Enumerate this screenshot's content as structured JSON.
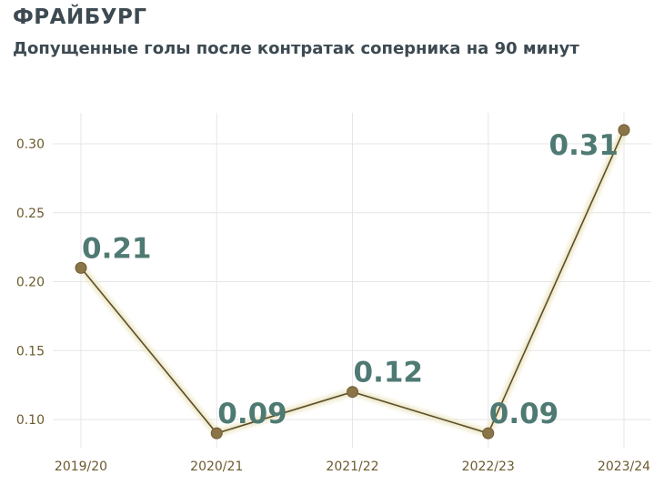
{
  "header": {
    "title": "ФРАЙБУРГ",
    "subtitle": "Допущенные голы после контратак соперника на 90 минут"
  },
  "chart_data": {
    "type": "line",
    "title": "ФРАЙБУРГ",
    "subtitle": "Допущенные голы после контратак соперника на 90 минут",
    "xlabel": "",
    "ylabel": "",
    "categories": [
      "2019/20",
      "2020/21",
      "2021/22",
      "2022/23",
      "2023/24"
    ],
    "values": [
      0.21,
      0.09,
      0.12,
      0.09,
      0.31
    ],
    "data_labels": [
      "0.21",
      "0.09",
      "0.12",
      "0.09",
      "0.31"
    ],
    "yticks": [
      0.1,
      0.15,
      0.2,
      0.25,
      0.3
    ],
    "ytick_labels": [
      "0.10",
      "0.15",
      "0.20",
      "0.25",
      "0.30"
    ],
    "ylim": [
      0.085,
      0.325
    ],
    "grid": true,
    "legend": "none",
    "colors": {
      "line": "#5c4f2a",
      "marker": "#8b7447",
      "glow": "#ece6c4",
      "label": "#4f7a73",
      "tick": "#6b5a2e",
      "grid": "#e6e6e6"
    }
  }
}
